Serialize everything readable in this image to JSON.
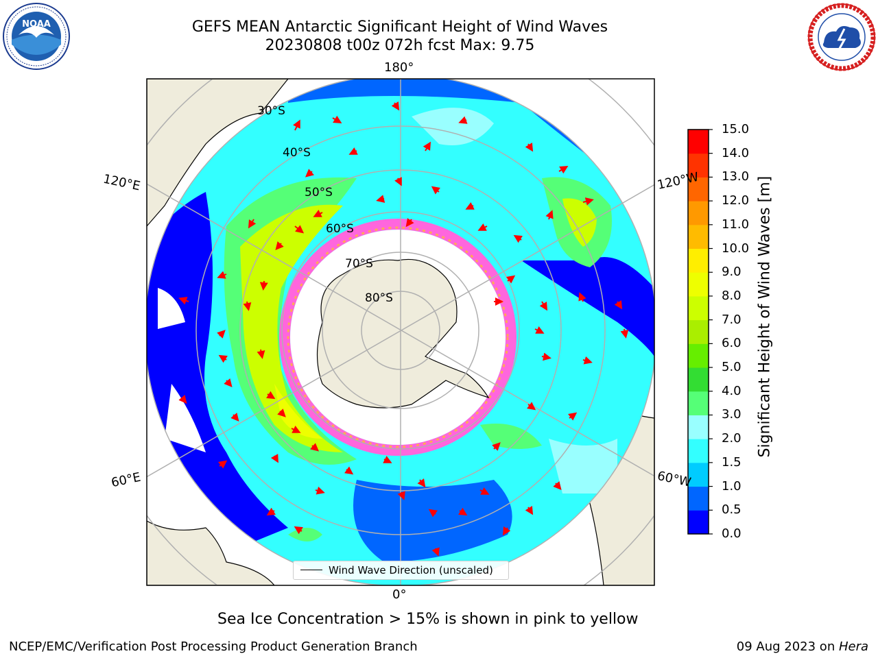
{
  "header": {
    "title_line1": "GEFS MEAN Antarctic Significant Height of Wind Waves",
    "title_line2": "20230808 t00z 072h fcst   Max: 9.75"
  },
  "logos": {
    "noaa_text": "NOAA",
    "noaa_ring": "NATIONAL OCEANIC AND ATMOSPHERIC ADMINISTRATION · U.S. DEPARTMENT OF COMMERCE",
    "nws_ring": "NATIONAL WEATHER SERVICE"
  },
  "map": {
    "projection": "south-polar-stereographic",
    "lon_labels": {
      "top": "180°",
      "bottom": "0°",
      "left_upper": "120°E",
      "left_lower": "60°E",
      "right_upper": "120°W",
      "right_lower": "60°W"
    },
    "lat_labels": [
      "30°S",
      "40°S",
      "50°S",
      "60°S",
      "70°S",
      "80°S"
    ],
    "land_color": "#efecdc",
    "arrow_color": "#ff0000"
  },
  "legend": {
    "label": "Wind Wave Direction (unscaled)"
  },
  "colorbar": {
    "label": "Significant Height of Wind Waves [m]",
    "ticks": [
      "0.0",
      "0.5",
      "1.0",
      "1.5",
      "2.0",
      "3.0",
      "4.0",
      "5.0",
      "6.0",
      "7.0",
      "8.0",
      "9.0",
      "10.0",
      "11.0",
      "12.0",
      "13.0",
      "14.0",
      "15.0"
    ],
    "colors": [
      "#0000ff",
      "#0066ff",
      "#00ccff",
      "#33ffff",
      "#99ffff",
      "#55ff77",
      "#33dd33",
      "#66ee00",
      "#aaee00",
      "#ccff00",
      "#eeff00",
      "#ffee00",
      "#ffbb00",
      "#ff9900",
      "#ff6600",
      "#ff3300",
      "#ff0000"
    ]
  },
  "note": "Sea Ice Concentration > 15% is shown in pink to yellow",
  "footer": {
    "left": "NCEP/EMC/Verification Post Processing Product Generation Branch",
    "right_date": "09 Aug 2023 on ",
    "right_host": "Hera"
  }
}
